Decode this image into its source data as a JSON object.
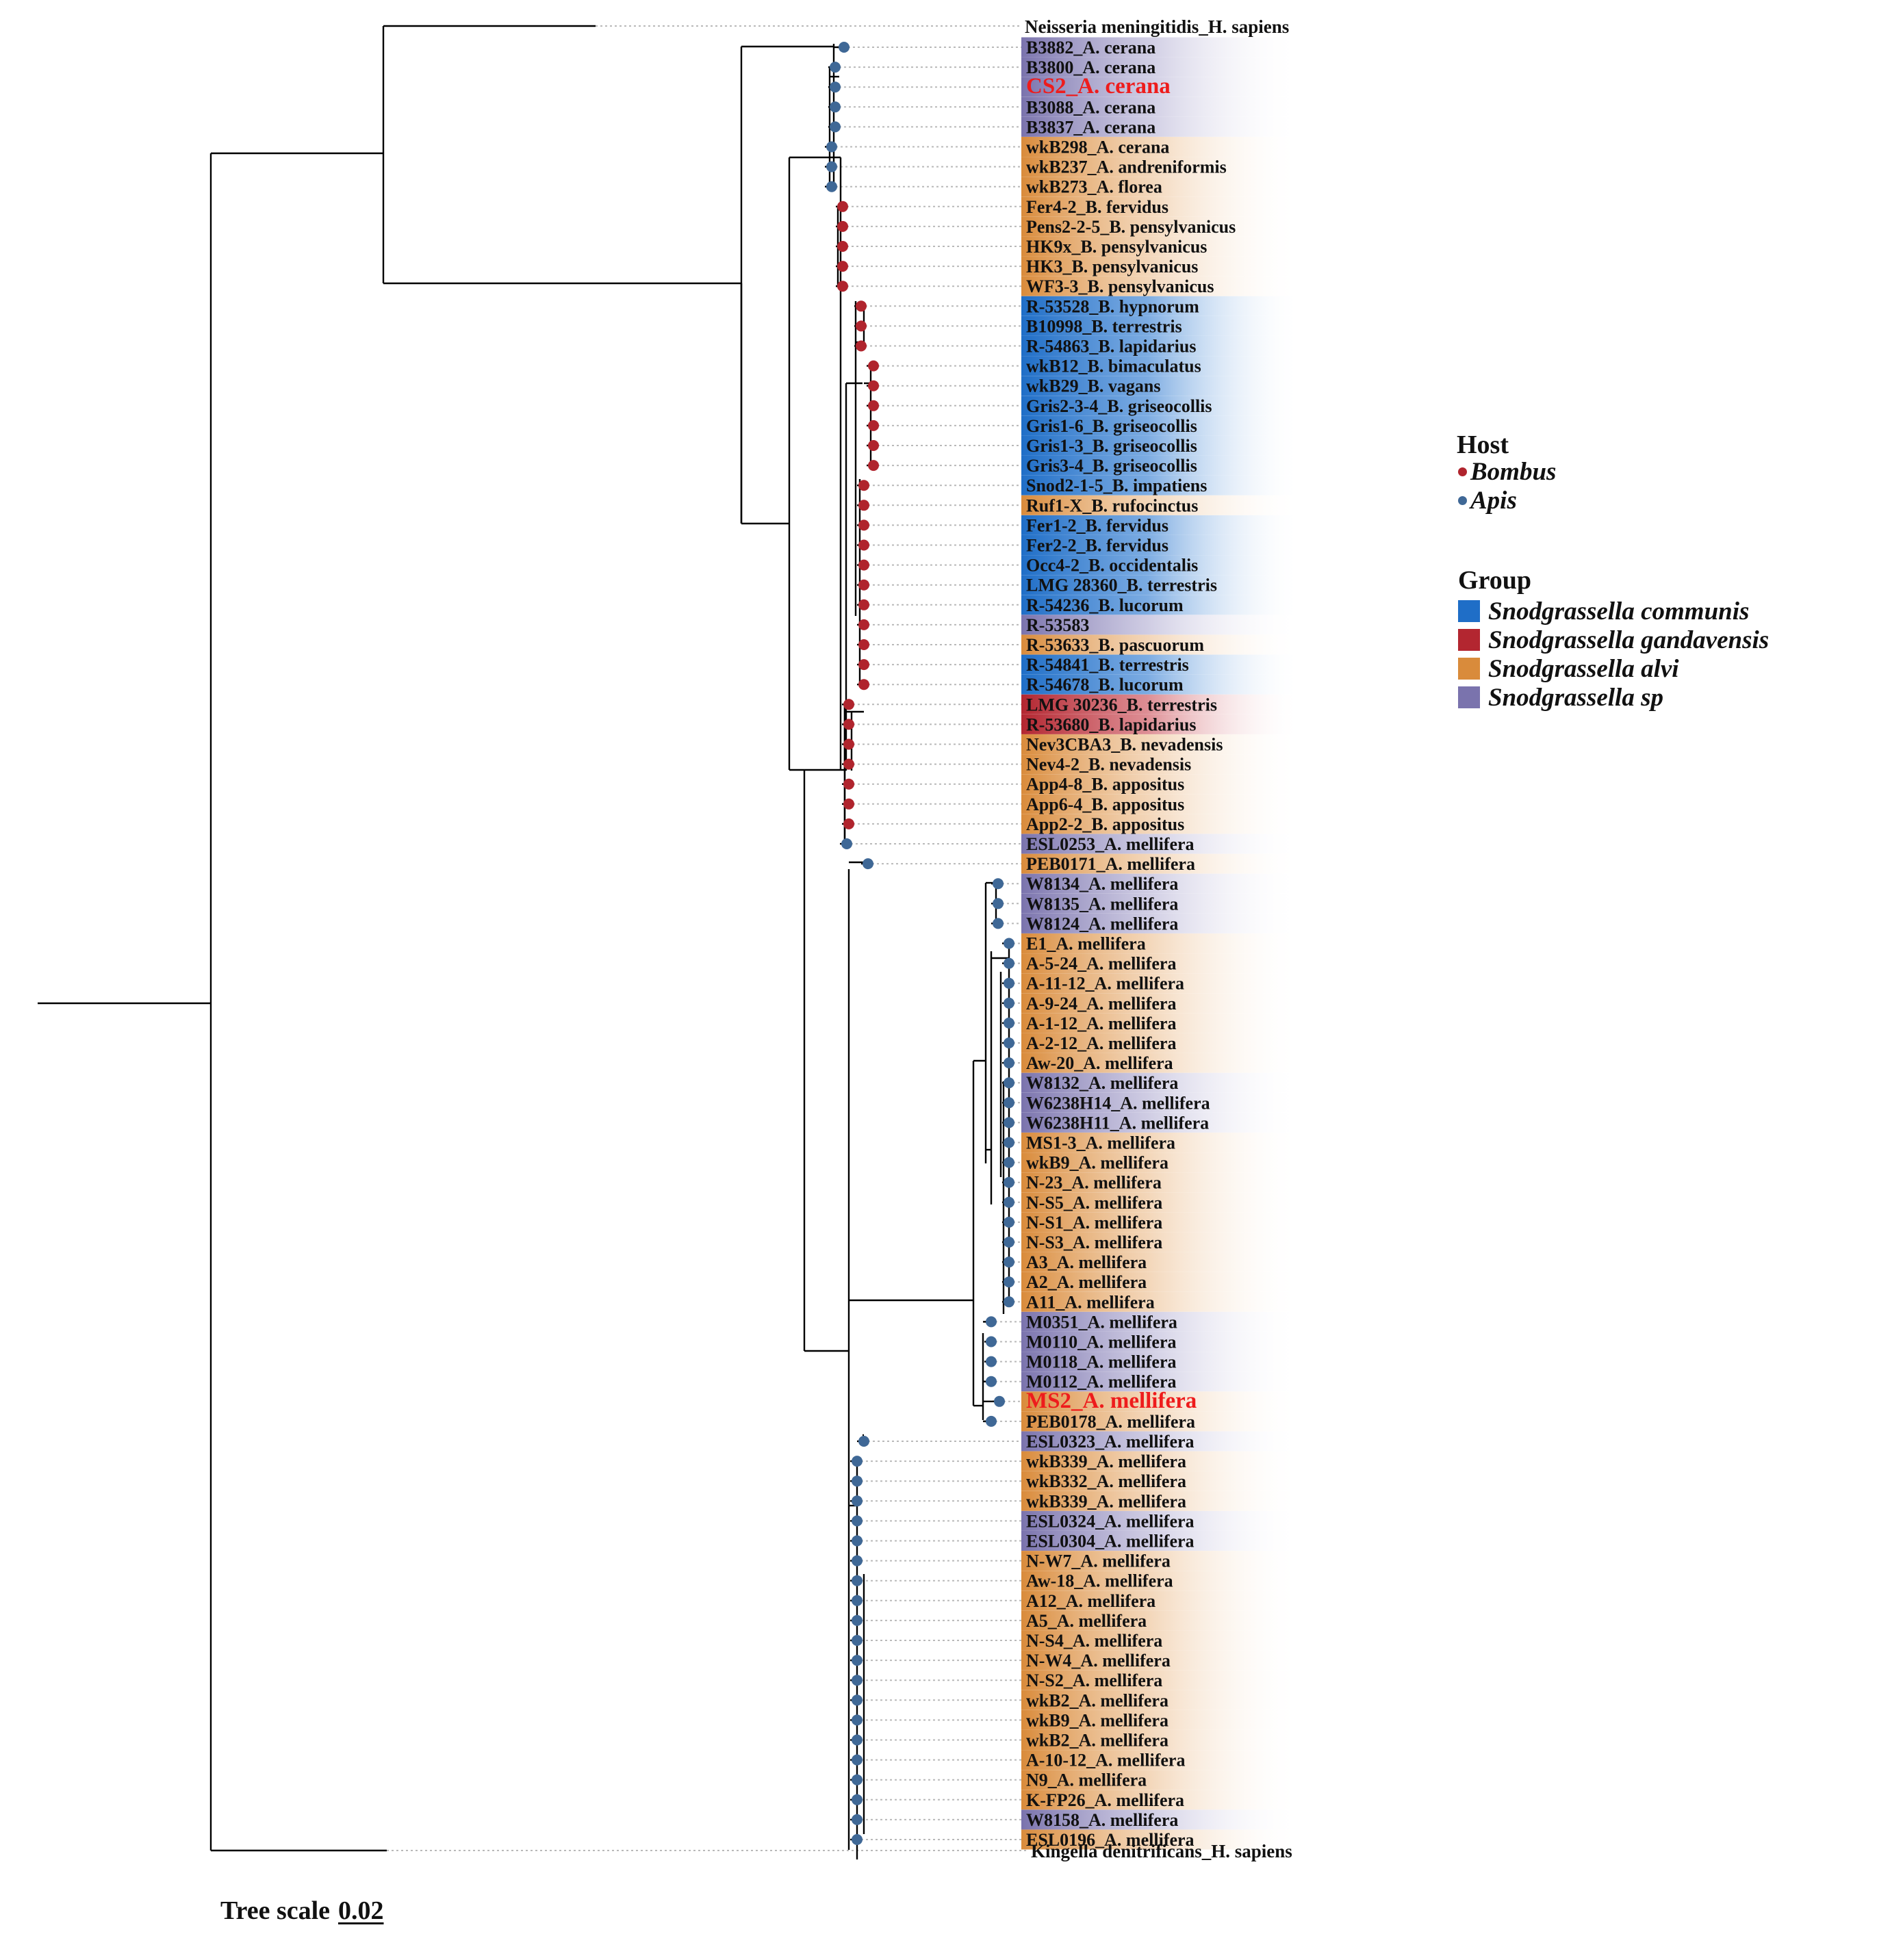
{
  "outgroups": {
    "top": "Neisseria meningitidis_H. sapiens",
    "bottom": "Kingella denitrificans_H. sapiens"
  },
  "legend": {
    "host": {
      "title": "Host",
      "items": [
        {
          "label": "Bombus",
          "color": "#b0242d"
        },
        {
          "label": "Apis",
          "color": "#3f6896"
        }
      ]
    },
    "group": {
      "title": "Group",
      "items": [
        {
          "label": "Snodgrassella communis",
          "color": "#1f6ec7"
        },
        {
          "label": "Snodgrassella gandavensis",
          "color": "#b32630"
        },
        {
          "label": "Snodgrassella alvi",
          "color": "#d98b3b"
        },
        {
          "label": "Snodgrassella sp",
          "color": "#7a73ad"
        }
      ]
    }
  },
  "scale": {
    "label": "Tree scale",
    "value": "0.02"
  },
  "tips": [
    {
      "label": "B3882_A. cerana",
      "group": "sp",
      "host": "Apis"
    },
    {
      "label": "B3800_A. cerana",
      "group": "sp",
      "host": "Apis"
    },
    {
      "label": "CS2_A. cerana",
      "group": "sp",
      "host": "Apis",
      "highlight": true
    },
    {
      "label": "B3088_A. cerana",
      "group": "sp",
      "host": "Apis"
    },
    {
      "label": "B3837_A. cerana",
      "group": "sp",
      "host": "Apis"
    },
    {
      "label": "wkB298_A. cerana",
      "group": "alvi",
      "host": "Apis"
    },
    {
      "label": "wkB237_A. andreniformis",
      "group": "alvi",
      "host": "Apis"
    },
    {
      "label": "wkB273_A. florea",
      "group": "alvi",
      "host": "Apis"
    },
    {
      "label": "Fer4-2_B. fervidus",
      "group": "alvi",
      "host": "Bombus"
    },
    {
      "label": "Pens2-2-5_B. pensylvanicus",
      "group": "alvi",
      "host": "Bombus"
    },
    {
      "label": "HK9x_B. pensylvanicus",
      "group": "alvi",
      "host": "Bombus"
    },
    {
      "label": "HK3_B. pensylvanicus",
      "group": "alvi",
      "host": "Bombus"
    },
    {
      "label": "WF3-3_B. pensylvanicus",
      "group": "alvi",
      "host": "Bombus"
    },
    {
      "label": "R-53528_B. hypnorum",
      "group": "communis",
      "host": "Bombus"
    },
    {
      "label": "B10998_B. terrestris",
      "group": "communis",
      "host": "Bombus"
    },
    {
      "label": "R-54863_B. lapidarius",
      "group": "communis",
      "host": "Bombus"
    },
    {
      "label": "wkB12_B. bimaculatus",
      "group": "communis",
      "host": "Bombus"
    },
    {
      "label": "wkB29_B. vagans",
      "group": "communis",
      "host": "Bombus"
    },
    {
      "label": "Gris2-3-4_B. griseocollis",
      "group": "communis",
      "host": "Bombus"
    },
    {
      "label": "Gris1-6_B. griseocollis",
      "group": "communis",
      "host": "Bombus"
    },
    {
      "label": "Gris1-3_B. griseocollis",
      "group": "communis",
      "host": "Bombus"
    },
    {
      "label": "Gris3-4_B. griseocollis",
      "group": "communis",
      "host": "Bombus"
    },
    {
      "label": "Snod2-1-5_B. impatiens",
      "group": "communis",
      "host": "Bombus"
    },
    {
      "label": "Ruf1-X_B. rufocinctus",
      "group": "alvi",
      "host": "Bombus"
    },
    {
      "label": "Fer1-2_B. fervidus",
      "group": "communis",
      "host": "Bombus"
    },
    {
      "label": "Fer2-2_B. fervidus",
      "group": "communis",
      "host": "Bombus"
    },
    {
      "label": "Occ4-2_B. occidentalis",
      "group": "communis",
      "host": "Bombus"
    },
    {
      "label": "LMG 28360_B. terrestris",
      "group": "communis",
      "host": "Bombus"
    },
    {
      "label": "R-54236_B. lucorum",
      "group": "communis",
      "host": "Bombus"
    },
    {
      "label": "R-53583",
      "group": "sp",
      "host": "Bombus"
    },
    {
      "label": "R-53633_B. pascuorum",
      "group": "alvi",
      "host": "Bombus"
    },
    {
      "label": "R-54841_B. terrestris",
      "group": "communis",
      "host": "Bombus"
    },
    {
      "label": "R-54678_B. lucorum",
      "group": "communis",
      "host": "Bombus"
    },
    {
      "label": "LMG 30236_B. terrestris",
      "group": "gandavensis",
      "host": "Bombus"
    },
    {
      "label": "R-53680_B. lapidarius",
      "group": "gandavensis",
      "host": "Bombus"
    },
    {
      "label": "Nev3CBA3_B. nevadensis",
      "group": "alvi",
      "host": "Bombus"
    },
    {
      "label": "Nev4-2_B. nevadensis",
      "group": "alvi",
      "host": "Bombus"
    },
    {
      "label": "App4-8_B. appositus",
      "group": "alvi",
      "host": "Bombus"
    },
    {
      "label": "App6-4_B. appositus",
      "group": "alvi",
      "host": "Bombus"
    },
    {
      "label": "App2-2_B. appositus",
      "group": "alvi",
      "host": "Bombus"
    },
    {
      "label": "ESL0253_A. mellifera",
      "group": "sp",
      "host": "Apis"
    },
    {
      "label": "PEB0171_A. mellifera",
      "group": "alvi",
      "host": "Apis"
    },
    {
      "label": "W8134_A. mellifera",
      "group": "sp",
      "host": "Apis"
    },
    {
      "label": "W8135_A. mellifera",
      "group": "sp",
      "host": "Apis"
    },
    {
      "label": "W8124_A. mellifera",
      "group": "sp",
      "host": "Apis"
    },
    {
      "label": "E1_A. mellifera",
      "group": "alvi",
      "host": "Apis"
    },
    {
      "label": "A-5-24_A. mellifera",
      "group": "alvi",
      "host": "Apis"
    },
    {
      "label": "A-11-12_A. mellifera",
      "group": "alvi",
      "host": "Apis"
    },
    {
      "label": "A-9-24_A. mellifera",
      "group": "alvi",
      "host": "Apis"
    },
    {
      "label": "A-1-12_A. mellifera",
      "group": "alvi",
      "host": "Apis"
    },
    {
      "label": "A-2-12_A. mellifera",
      "group": "alvi",
      "host": "Apis"
    },
    {
      "label": "Aw-20_A. mellifera",
      "group": "alvi",
      "host": "Apis"
    },
    {
      "label": "W8132_A. mellifera",
      "group": "sp",
      "host": "Apis"
    },
    {
      "label": "W6238H14_A. mellifera",
      "group": "sp",
      "host": "Apis"
    },
    {
      "label": "W6238H11_A. mellifera",
      "group": "sp",
      "host": "Apis"
    },
    {
      "label": "MS1-3_A. mellifera",
      "group": "alvi",
      "host": "Apis"
    },
    {
      "label": "wkB9_A. mellifera",
      "group": "alvi",
      "host": "Apis"
    },
    {
      "label": "N-23_A. mellifera",
      "group": "alvi",
      "host": "Apis"
    },
    {
      "label": "N-S5_A. mellifera",
      "group": "alvi",
      "host": "Apis"
    },
    {
      "label": "N-S1_A. mellifera",
      "group": "alvi",
      "host": "Apis"
    },
    {
      "label": "N-S3_A. mellifera",
      "group": "alvi",
      "host": "Apis"
    },
    {
      "label": "A3_A. mellifera",
      "group": "alvi",
      "host": "Apis"
    },
    {
      "label": "A2_A. mellifera",
      "group": "alvi",
      "host": "Apis"
    },
    {
      "label": "A11_A. mellifera",
      "group": "alvi",
      "host": "Apis"
    },
    {
      "label": "M0351_A. mellifera",
      "group": "sp",
      "host": "Apis"
    },
    {
      "label": "M0110_A. mellifera",
      "group": "sp",
      "host": "Apis"
    },
    {
      "label": "M0118_A. mellifera",
      "group": "sp",
      "host": "Apis"
    },
    {
      "label": "M0112_A. mellifera",
      "group": "sp",
      "host": "Apis"
    },
    {
      "label": "MS2_A. mellifera",
      "group": "alvi",
      "host": "Apis",
      "highlight": true
    },
    {
      "label": "PEB0178_A. mellifera",
      "group": "alvi",
      "host": "Apis"
    },
    {
      "label": "ESL0323_A. mellifera",
      "group": "sp",
      "host": "Apis"
    },
    {
      "label": "wkB339_A. mellifera",
      "group": "alvi",
      "host": "Apis"
    },
    {
      "label": "wkB332_A. mellifera",
      "group": "alvi",
      "host": "Apis"
    },
    {
      "label": "wkB339_A. mellifera",
      "group": "alvi",
      "host": "Apis"
    },
    {
      "label": "ESL0324_A. mellifera",
      "group": "sp",
      "host": "Apis"
    },
    {
      "label": "ESL0304_A. mellifera",
      "group": "sp",
      "host": "Apis"
    },
    {
      "label": "N-W7_A. mellifera",
      "group": "alvi",
      "host": "Apis"
    },
    {
      "label": "Aw-18_A. mellifera",
      "group": "alvi",
      "host": "Apis"
    },
    {
      "label": "A12_A. mellifera",
      "group": "alvi",
      "host": "Apis"
    },
    {
      "label": "A5_A. mellifera",
      "group": "alvi",
      "host": "Apis"
    },
    {
      "label": "N-S4_A. mellifera",
      "group": "alvi",
      "host": "Apis"
    },
    {
      "label": "N-W4_A. mellifera",
      "group": "alvi",
      "host": "Apis"
    },
    {
      "label": "N-S2_A. mellifera",
      "group": "alvi",
      "host": "Apis"
    },
    {
      "label": "wkB2_A. mellifera",
      "group": "alvi",
      "host": "Apis"
    },
    {
      "label": "wkB9_A. mellifera",
      "group": "alvi",
      "host": "Apis"
    },
    {
      "label": "wkB2_A. mellifera",
      "group": "alvi",
      "host": "Apis"
    },
    {
      "label": "A-10-12_A. mellifera",
      "group": "alvi",
      "host": "Apis"
    },
    {
      "label": "N9_A. mellifera",
      "group": "alvi",
      "host": "Apis"
    },
    {
      "label": "K-FP26_A. mellifera",
      "group": "alvi",
      "host": "Apis"
    },
    {
      "label": "W8158_A. mellifera",
      "group": "sp",
      "host": "Apis"
    },
    {
      "label": "ESL0196_A. mellifera",
      "group": "alvi",
      "host": "Apis"
    }
  ]
}
